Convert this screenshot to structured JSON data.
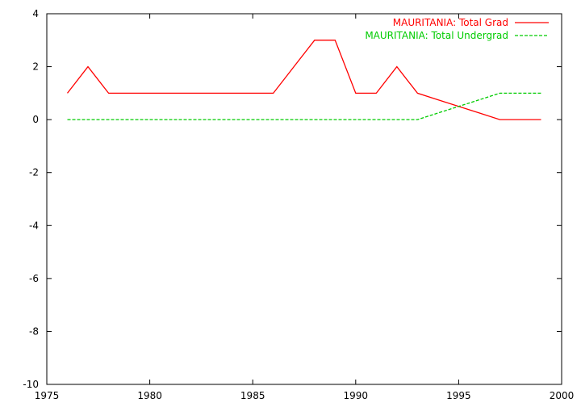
{
  "chart_data": {
    "type": "line",
    "title": "",
    "xlabel": "",
    "ylabel": "",
    "xlim": [
      1975,
      2000
    ],
    "ylim": [
      -10,
      4
    ],
    "x_ticks": [
      1975,
      1980,
      1985,
      1990,
      1995,
      2000
    ],
    "y_ticks": [
      4,
      2,
      0,
      -2,
      -4,
      -6,
      -8,
      -10
    ],
    "grid": false,
    "legend_position": "top-right",
    "series": [
      {
        "name": "MAURITANIA: Total Grad",
        "color": "#ff0000",
        "dash": "solid",
        "x": [
          1976,
          1977,
          1978,
          1979,
          1980,
          1981,
          1982,
          1983,
          1984,
          1985,
          1986,
          1987,
          1988,
          1989,
          1990,
          1991,
          1992,
          1993,
          1994,
          1995,
          1996,
          1997,
          1998,
          1999
        ],
        "y": [
          1,
          2,
          1,
          1,
          1,
          1,
          1,
          1,
          1,
          1,
          1,
          2,
          3,
          3,
          1,
          1,
          2,
          1,
          0.75,
          0.5,
          0.25,
          0,
          0,
          0
        ]
      },
      {
        "name": "MAURITANIA: Total Undergrad",
        "color": "#00cc00",
        "dash": "dashed",
        "x": [
          1976,
          1977,
          1978,
          1979,
          1980,
          1981,
          1982,
          1983,
          1984,
          1985,
          1986,
          1987,
          1988,
          1989,
          1990,
          1991,
          1992,
          1993,
          1994,
          1995,
          1996,
          1997,
          1998,
          1999
        ],
        "y": [
          0,
          0,
          0,
          0,
          0,
          0,
          0,
          0,
          0,
          0,
          0,
          0,
          0,
          0,
          0,
          0,
          0,
          0,
          0.25,
          0.5,
          0.75,
          1,
          1,
          1
        ]
      }
    ]
  }
}
